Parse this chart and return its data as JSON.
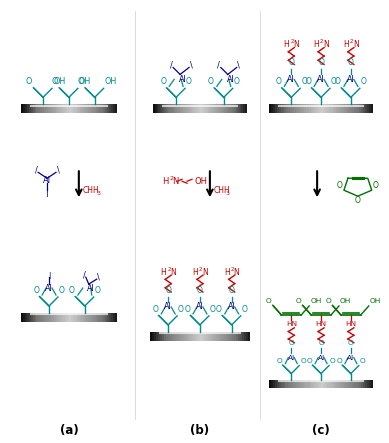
{
  "background": "#ffffff",
  "T": "#008B8B",
  "R": "#CC0000",
  "B": "#00008B",
  "BL": "#000000",
  "GR": "#007000",
  "label_a": "(a)",
  "label_b": "(b)",
  "label_c": "(c)"
}
